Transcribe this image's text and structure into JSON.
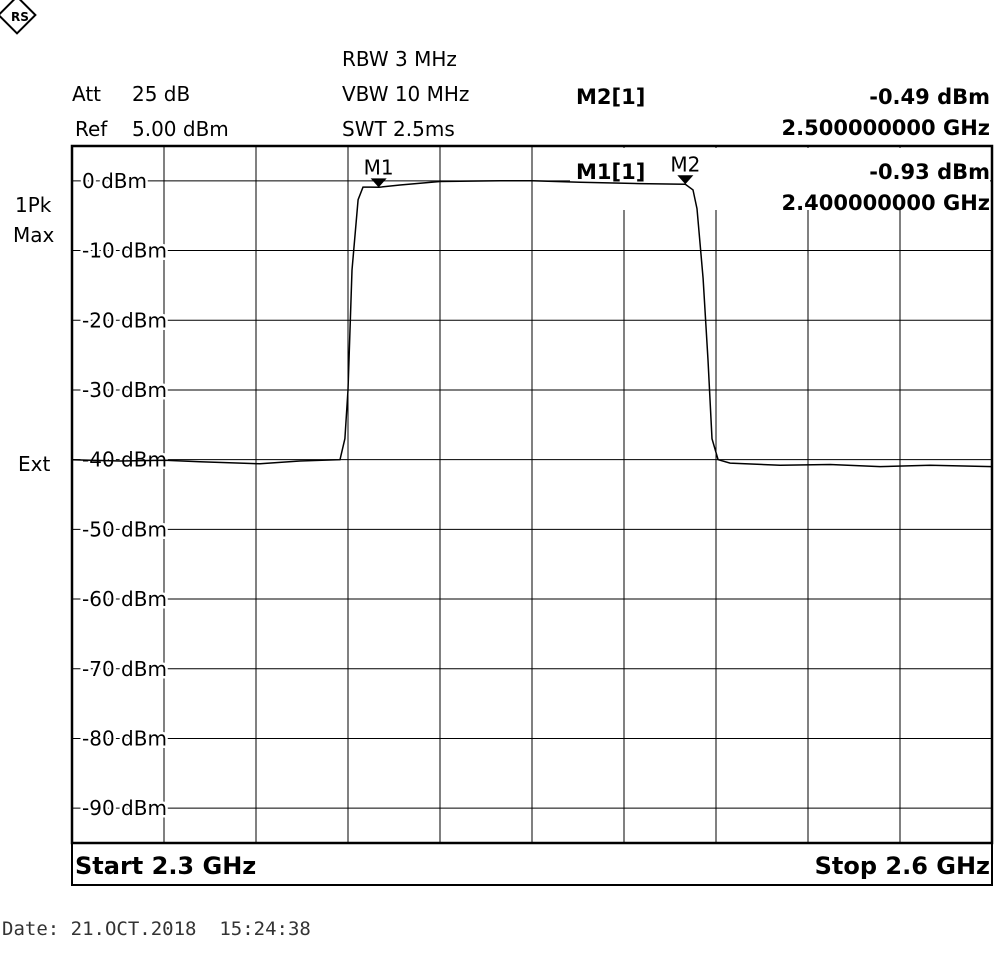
{
  "header": {
    "att_label": "Att",
    "att": "25 dB",
    "ref_label": "Ref",
    "ref": "5.00 dBm",
    "rbw": "RBW 3 MHz",
    "vbw": "VBW 10 MHz",
    "swt": "SWT 2.5ms",
    "trace_mode": "1Pk",
    "trace_detector": "Max",
    "trigger": "Ext"
  },
  "footer": {
    "date": "Date: 21.OCT.2018  15:24:38"
  },
  "chart_data": {
    "type": "line",
    "color": "#000000",
    "x": [
      2.3,
      2.3157,
      2.3303,
      2.3417,
      2.3613,
      2.3743,
      2.3874,
      2.389,
      2.39,
      2.3913,
      2.3933,
      2.3949,
      2.3972,
      2.4,
      2.407,
      2.42,
      2.4396,
      2.45,
      2.4657,
      2.4852,
      2.5,
      2.5025,
      2.5038,
      2.5058,
      2.5074,
      2.5087,
      2.5107,
      2.5146,
      2.5309,
      2.5472,
      2.5635,
      2.5798,
      2.6
    ],
    "values": [
      -40.0,
      -40.2,
      -40.1,
      -40.3,
      -40.6,
      -40.2,
      -40.0,
      -37,
      -30,
      -12.8,
      -2.7,
      -0.9,
      -0.9,
      -0.93,
      -0.6,
      -0.1,
      0.0,
      0.0,
      -0.2,
      -0.4,
      -0.49,
      -1.3,
      -4,
      -14,
      -25.7,
      -37,
      -40.0,
      -40.5,
      -40.8,
      -40.7,
      -41.0,
      -40.8,
      -41.0
    ],
    "xlim": [
      2.3,
      2.6
    ],
    "xticks": [
      {
        "value": 2.3,
        "label": "Start 2.3 GHz"
      },
      {
        "value": 2.6,
        "label": "Stop 2.6 GHz"
      }
    ],
    "ylim": [
      -95,
      5
    ],
    "yticks": [
      {
        "value": 0,
        "label": "0 dBm"
      },
      {
        "value": -10,
        "label": "-10 dBm"
      },
      {
        "value": -20,
        "label": "-20 dBm"
      },
      {
        "value": -30,
        "label": "-30 dBm"
      },
      {
        "value": -40,
        "label": "-40 dBm"
      },
      {
        "value": -50,
        "label": "-50 dBm"
      },
      {
        "value": -60,
        "label": "-60 dBm"
      },
      {
        "value": -70,
        "label": "-70 dBm"
      },
      {
        "value": -80,
        "label": "-80 dBm"
      },
      {
        "value": -90,
        "label": "-90 dBm"
      }
    ],
    "grid": true,
    "markers": [
      {
        "name": "M1",
        "label": "M1[1]",
        "x": 2.4,
        "y": -0.93,
        "value_label": "-0.93 dBm",
        "x_label": "2.400000000 GHz"
      },
      {
        "name": "M2",
        "label": "M2[1]",
        "x": 2.5,
        "y": -0.49,
        "value_label": "-0.49 dBm",
        "x_label": "2.500000000 GHz"
      }
    ]
  }
}
